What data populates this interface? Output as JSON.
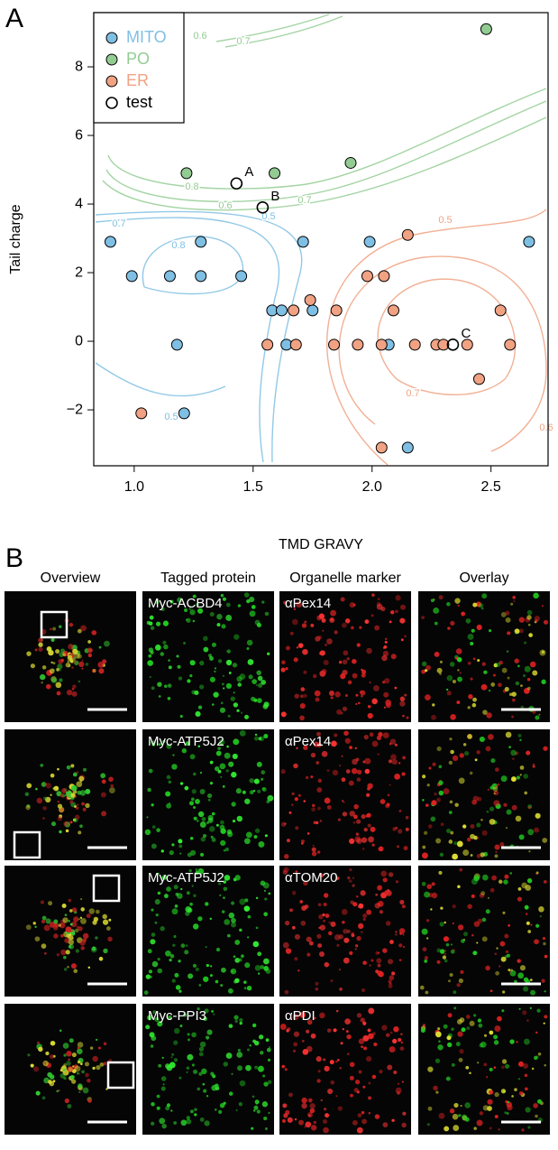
{
  "panel_labels": [
    "A",
    "B"
  ],
  "chart_data": {
    "type": "scatter",
    "x_label": "TMD GRAVY",
    "y_label": "Tail charge",
    "xlim": [
      0.83,
      2.74
    ],
    "ylim": [
      -3.63,
      9.58
    ],
    "xticks": [
      {
        "value": 1,
        "label": "1.0"
      },
      1.5,
      {
        "value": 2,
        "label": "2.0"
      },
      2.5
    ],
    "yticks": [
      {
        "value": -2,
        "label": "−2"
      },
      0,
      2,
      4,
      6,
      8
    ],
    "legend": "top-left",
    "series": [
      {
        "name": "MITO",
        "color": "#7fbfe3",
        "x": [
          0.9,
          0.99,
          1.15,
          1.28,
          1.28,
          1.45,
          1.18,
          1.21,
          1.71,
          1.58,
          1.62,
          1.75,
          1.64,
          1.99,
          2.07,
          2.15,
          2.66
        ],
        "y": [
          2.9,
          1.9,
          1.9,
          2.9,
          1.9,
          1.9,
          -0.1,
          -2.1,
          2.9,
          0.9,
          0.9,
          0.9,
          -0.1,
          2.9,
          -0.1,
          -3.1,
          2.9
        ]
      },
      {
        "name": "PO",
        "color": "#93cc93",
        "x": [
          1.22,
          1.59,
          1.91,
          2.48
        ],
        "y": [
          4.9,
          4.9,
          5.2,
          9.1
        ]
      },
      {
        "name": "ER",
        "color": "#f0a283",
        "x": [
          1.03,
          1.74,
          1.67,
          1.85,
          1.56,
          1.68,
          1.84,
          1.98,
          2.05,
          2.09,
          2.15,
          1.94,
          2.04,
          2.18,
          2.27,
          2.3,
          2.4,
          2.54,
          2.58,
          2.45,
          2.04
        ],
        "y": [
          -2.1,
          1.2,
          0.9,
          0.9,
          -0.1,
          -0.1,
          -0.1,
          1.9,
          1.9,
          0.9,
          3.1,
          -0.1,
          -0.1,
          -0.1,
          -0.1,
          -0.1,
          -0.1,
          0.9,
          -0.1,
          -1.1,
          -3.1
        ]
      },
      {
        "name": "test",
        "color": "#000000",
        "marker": "open",
        "x": [
          1.43,
          1.54,
          2.34
        ],
        "y": [
          4.6,
          3.9,
          -0.1
        ],
        "labels": [
          "A",
          "B",
          "C"
        ]
      }
    ],
    "contours": [
      {
        "series": "PO",
        "level": 0.6
      },
      {
        "series": "PO",
        "level": 0.7
      },
      {
        "series": "PO",
        "level": 0.8
      },
      {
        "series": "PO",
        "level": 0.6
      },
      {
        "series": "PO",
        "level": 0.7
      },
      {
        "series": "MITO",
        "level": 0.8
      },
      {
        "series": "MITO",
        "level": 0.7
      },
      {
        "series": "MITO",
        "level": 0.5
      },
      {
        "series": "MITO",
        "level": 0.5
      },
      {
        "series": "ER",
        "level": 0.5
      },
      {
        "series": "ER",
        "level": 0.7
      },
      {
        "series": "ER",
        "level": 0.6
      }
    ]
  },
  "panel_b": {
    "columns": [
      "Overview",
      "Tagged protein",
      "Organelle marker",
      "Overlay"
    ],
    "rows": [
      {
        "protein": "Myc-ACBD4",
        "marker": "αPex14"
      },
      {
        "protein": "Myc-ATP5J2",
        "marker": "αPex14"
      },
      {
        "protein": "Myc-ATP5J2",
        "marker": "αTOM20"
      },
      {
        "protein": "Myc-PPI3",
        "marker": "αPDI"
      }
    ]
  }
}
